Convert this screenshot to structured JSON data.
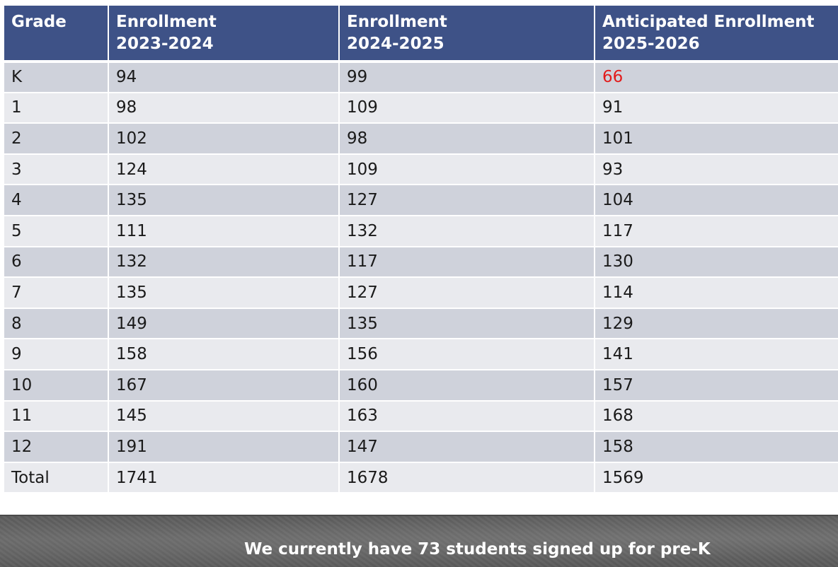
{
  "table": {
    "headers": [
      [
        "Grade"
      ],
      [
        "Enrollment",
        "2023-2024"
      ],
      [
        "Enrollment",
        "2024-2025"
      ],
      [
        "Anticipated Enrollment",
        "2025-2026"
      ]
    ],
    "rows": [
      [
        "K",
        "94",
        "99",
        "66"
      ],
      [
        "1",
        "98",
        "109",
        "91"
      ],
      [
        "2",
        "102",
        "98",
        "101"
      ],
      [
        "3",
        "124",
        "109",
        "93"
      ],
      [
        "4",
        "135",
        "127",
        "104"
      ],
      [
        "5",
        "111",
        "132",
        "117"
      ],
      [
        "6",
        "132",
        "117",
        "130"
      ],
      [
        "7",
        "135",
        "127",
        "114"
      ],
      [
        "8",
        "149",
        "135",
        "129"
      ],
      [
        "9",
        "158",
        "156",
        "141"
      ],
      [
        "10",
        "167",
        "160",
        "157"
      ],
      [
        "11",
        "145",
        "163",
        "168"
      ],
      [
        "12",
        "191",
        "147",
        "158"
      ],
      [
        "Total",
        "1741",
        "1678",
        "1569"
      ]
    ],
    "highlight": {
      "row": 0,
      "col": 3,
      "color": "#e21b1b"
    },
    "colors": {
      "header_bg": "#3e5287",
      "row_dark": "#cfd2db",
      "row_light": "#e9eaee"
    }
  },
  "footer": {
    "note": "We currently have 73 students signed up for pre-K"
  }
}
